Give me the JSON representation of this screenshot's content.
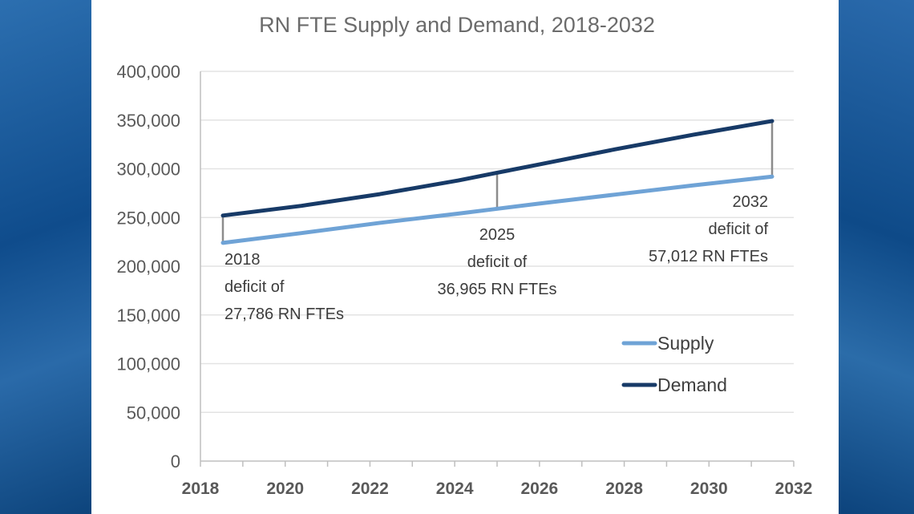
{
  "chart_data": {
    "type": "line",
    "title": "RN FTE Supply and Demand, 2018-2032",
    "x": [
      2018,
      2020,
      2022,
      2024,
      2025,
      2026,
      2028,
      2030,
      2032
    ],
    "x_ticks": [
      "2018",
      "2020",
      "2022",
      "2024",
      "2026",
      "2028",
      "2030",
      "2032"
    ],
    "y_ticks": [
      "0",
      "50,000",
      "100,000",
      "150,000",
      "200,000",
      "250,000",
      "300,000",
      "350,000",
      "400,000"
    ],
    "ylim": [
      0,
      400000
    ],
    "xlim": [
      2018,
      2032
    ],
    "series": [
      {
        "name": "Supply",
        "color": "#6fa3d6",
        "values": [
          224000,
          234000,
          244500,
          254000,
          259000,
          264000,
          273500,
          283000,
          292000
        ]
      },
      {
        "name": "Demand",
        "color": "#173a67",
        "values": [
          252000,
          262000,
          274000,
          288000,
          296000,
          304000,
          320000,
          335000,
          349000
        ]
      }
    ],
    "deficits": [
      {
        "year": 2018,
        "supply": 224000,
        "demand": 252000,
        "lines": [
          "2018",
          "deficit of",
          "27,786 RN FTEs"
        ],
        "align": "start"
      },
      {
        "year": 2025,
        "supply": 259000,
        "demand": 296000,
        "lines": [
          "2025",
          "deficit of",
          "36,965 RN FTEs"
        ],
        "align": "middle"
      },
      {
        "year": 2032,
        "supply": 292000,
        "demand": 349000,
        "lines": [
          "2032",
          "deficit of",
          "57,012 RN FTEs"
        ],
        "align": "end"
      }
    ],
    "grid": true,
    "legend": "right"
  }
}
